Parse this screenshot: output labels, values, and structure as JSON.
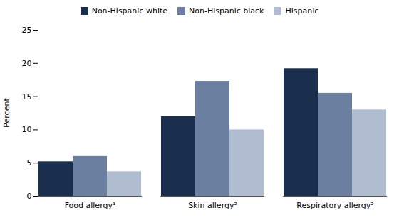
{
  "chart_data": {
    "type": "bar",
    "categories": [
      "Food allergy¹",
      "Skin allergy²",
      "Respiratory allergy²"
    ],
    "series": [
      {
        "name": "Non-Hispanic white",
        "color": "#1a2f4e",
        "values": [
          5.2,
          12.0,
          19.2
        ]
      },
      {
        "name": "Non-Hispanic black",
        "color": "#6b80a0",
        "values": [
          6.0,
          17.3,
          15.5
        ]
      },
      {
        "name": "Hispanic",
        "color": "#b0bdd0",
        "values": [
          3.7,
          10.0,
          13.0
        ]
      }
    ],
    "ylabel": "Percent",
    "ylim": [
      0,
      25
    ],
    "yticks": [
      0,
      5,
      10,
      15,
      20,
      25
    ],
    "grid": false,
    "legend": "upper left"
  }
}
